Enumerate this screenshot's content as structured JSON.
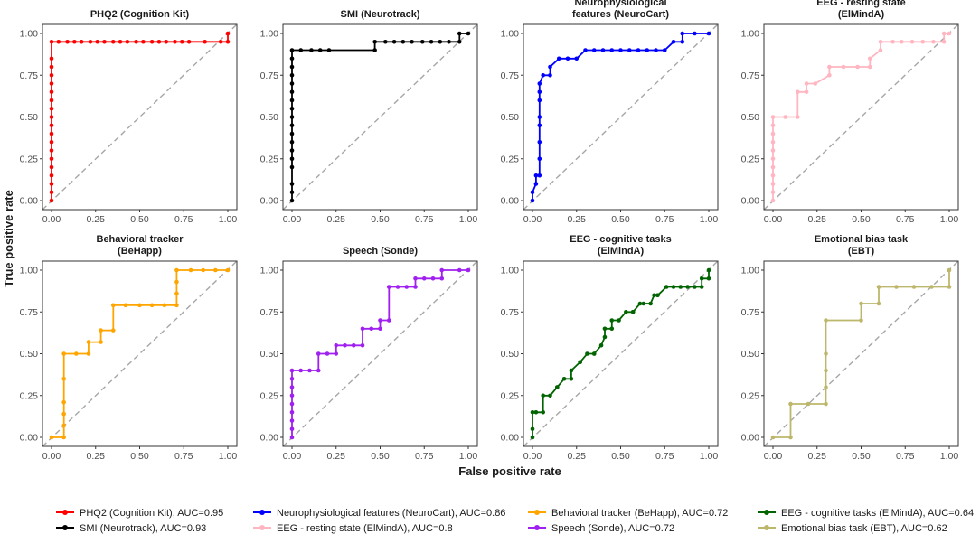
{
  "figure": {
    "xlabel": "False positive rate",
    "ylabel": "True positive rate",
    "axis_ticks": [
      "0.00",
      "0.25",
      "0.50",
      "0.75",
      "1.00"
    ]
  },
  "legend": {
    "items": [
      {
        "label": "PHQ2 (Cognition Kit), AUC=0.95",
        "color": "#ff0000"
      },
      {
        "label": "SMI (Neurotrack), AUC=0.93",
        "color": "#000000"
      },
      {
        "label": "Neurophysiological features (NeuroCart), AUC=0.86",
        "color": "#0000ff"
      },
      {
        "label": "EEG - resting state (ElMindA), AUC=0.8",
        "color": "#ffb6c1"
      },
      {
        "label": "Behavioral tracker (BeHapp), AUC=0.72",
        "color": "#ffa500"
      },
      {
        "label": "Speech (Sonde), AUC=0.72",
        "color": "#a020f0"
      },
      {
        "label": "EEG - cognitive tasks (ElMindA), AUC=0.64",
        "color": "#006400"
      },
      {
        "label": "Emotional bias task (EBT), AUC=0.62",
        "color": "#bdb76b"
      }
    ]
  },
  "chart_data": [
    {
      "type": "line",
      "title": [
        "PHQ2 (Cognition Kit)"
      ],
      "xlabel": "False positive rate",
      "ylabel": "True positive rate",
      "xlim": [
        0,
        1
      ],
      "ylim": [
        0,
        1
      ],
      "color": "#ff0000",
      "x": [
        0,
        0,
        0,
        0,
        0,
        0,
        0,
        0,
        0,
        0,
        0,
        0,
        0,
        0,
        0,
        0,
        0,
        0,
        0,
        0.04,
        0.09,
        0.13,
        0.17,
        0.22,
        0.26,
        0.3,
        0.35,
        0.39,
        0.43,
        0.48,
        0.52,
        0.57,
        0.61,
        0.65,
        0.7,
        0.74,
        0.78,
        0.87,
        0.96,
        1,
        1
      ],
      "y": [
        0,
        0.05,
        0.1,
        0.15,
        0.2,
        0.25,
        0.3,
        0.35,
        0.4,
        0.45,
        0.5,
        0.55,
        0.6,
        0.65,
        0.7,
        0.75,
        0.8,
        0.85,
        0.95,
        0.95,
        0.95,
        0.95,
        0.95,
        0.95,
        0.95,
        0.95,
        0.95,
        0.95,
        0.95,
        0.95,
        0.95,
        0.95,
        0.95,
        0.95,
        0.95,
        0.95,
        0.95,
        0.95,
        0.95,
        0.95,
        1
      ]
    },
    {
      "type": "line",
      "title": [
        "SMI (Neurotrack)"
      ],
      "xlabel": "False positive rate",
      "ylabel": "True positive rate",
      "xlim": [
        0,
        1
      ],
      "ylim": [
        0,
        1
      ],
      "color": "#000000",
      "x": [
        0,
        0,
        0,
        0,
        0,
        0,
        0,
        0,
        0,
        0,
        0,
        0,
        0,
        0,
        0,
        0,
        0,
        0,
        0.05,
        0.11,
        0.16,
        0.21,
        0.47,
        0.47,
        0.53,
        0.58,
        0.63,
        0.68,
        0.74,
        0.79,
        0.84,
        0.89,
        0.95,
        0.95,
        1
      ],
      "y": [
        0,
        0.05,
        0.1,
        0.2,
        0.25,
        0.3,
        0.35,
        0.4,
        0.45,
        0.5,
        0.55,
        0.6,
        0.65,
        0.7,
        0.75,
        0.8,
        0.85,
        0.9,
        0.9,
        0.9,
        0.9,
        0.9,
        0.9,
        0.95,
        0.95,
        0.95,
        0.95,
        0.95,
        0.95,
        0.95,
        0.95,
        0.95,
        0.95,
        1,
        1
      ]
    },
    {
      "type": "line",
      "title": [
        "Neurophysiological",
        "features (NeuroCart)"
      ],
      "xlabel": "False positive rate",
      "ylabel": "True positive rate",
      "xlim": [
        0,
        1
      ],
      "ylim": [
        0,
        1
      ],
      "color": "#0000ff",
      "x": [
        0,
        0,
        0.02,
        0.02,
        0.04,
        0.04,
        0.04,
        0.04,
        0.04,
        0.04,
        0.04,
        0.04,
        0.06,
        0.1,
        0.1,
        0.15,
        0.2,
        0.25,
        0.3,
        0.35,
        0.4,
        0.45,
        0.5,
        0.55,
        0.6,
        0.65,
        0.7,
        0.75,
        0.8,
        0.85,
        0.85,
        0.92,
        1
      ],
      "y": [
        0,
        0.05,
        0.1,
        0.15,
        0.15,
        0.25,
        0.35,
        0.45,
        0.5,
        0.6,
        0.65,
        0.7,
        0.75,
        0.75,
        0.8,
        0.85,
        0.85,
        0.85,
        0.9,
        0.9,
        0.9,
        0.9,
        0.9,
        0.9,
        0.9,
        0.9,
        0.9,
        0.9,
        0.95,
        0.95,
        1,
        1,
        1
      ]
    },
    {
      "type": "line",
      "title": [
        "EEG - resting state",
        "(ElMindA)"
      ],
      "xlabel": "False positive rate",
      "ylabel": "True positive rate",
      "xlim": [
        0,
        1
      ],
      "ylim": [
        0,
        1
      ],
      "color": "#ffb6c1",
      "x": [
        0,
        0,
        0,
        0,
        0,
        0,
        0,
        0,
        0,
        0,
        0,
        0.07,
        0.14,
        0.14,
        0.19,
        0.19,
        0.24,
        0.32,
        0.32,
        0.4,
        0.48,
        0.55,
        0.55,
        0.61,
        0.61,
        0.68,
        0.73,
        0.79,
        0.85,
        0.91,
        0.97,
        0.97,
        1
      ],
      "y": [
        0,
        0.05,
        0.1,
        0.15,
        0.2,
        0.25,
        0.3,
        0.35,
        0.4,
        0.45,
        0.5,
        0.5,
        0.5,
        0.65,
        0.65,
        0.7,
        0.7,
        0.75,
        0.8,
        0.8,
        0.8,
        0.8,
        0.85,
        0.9,
        0.95,
        0.95,
        0.95,
        0.95,
        0.95,
        0.95,
        0.95,
        1,
        1
      ]
    },
    {
      "type": "line",
      "title": [
        "Behavioral tracker",
        "(BeHapp)"
      ],
      "xlabel": "False positive rate",
      "ylabel": "True positive rate",
      "xlim": [
        0,
        1
      ],
      "ylim": [
        0,
        1
      ],
      "color": "#ffa500",
      "x": [
        0,
        0.07,
        0.07,
        0.07,
        0.07,
        0.07,
        0.07,
        0.14,
        0.21,
        0.21,
        0.28,
        0.28,
        0.35,
        0.35,
        0.42,
        0.5,
        0.57,
        0.64,
        0.71,
        0.71,
        0.71,
        0.71,
        0.79,
        0.86,
        0.93,
        1
      ],
      "y": [
        0,
        0,
        0.07,
        0.14,
        0.21,
        0.35,
        0.5,
        0.5,
        0.5,
        0.57,
        0.57,
        0.64,
        0.64,
        0.79,
        0.79,
        0.79,
        0.79,
        0.79,
        0.79,
        0.86,
        0.93,
        1,
        1,
        1,
        1,
        1
      ]
    },
    {
      "type": "line",
      "title": [
        "Speech (Sonde)"
      ],
      "xlabel": "False positive rate",
      "ylabel": "True positive rate",
      "xlim": [
        0,
        1
      ],
      "ylim": [
        0,
        1
      ],
      "color": "#a020f0",
      "x": [
        0,
        0,
        0,
        0,
        0,
        0,
        0,
        0,
        0,
        0.05,
        0.1,
        0.15,
        0.15,
        0.2,
        0.25,
        0.25,
        0.3,
        0.35,
        0.4,
        0.4,
        0.45,
        0.5,
        0.5,
        0.55,
        0.55,
        0.6,
        0.65,
        0.7,
        0.7,
        0.75,
        0.8,
        0.85,
        0.85,
        0.95,
        1
      ],
      "y": [
        0,
        0.05,
        0.1,
        0.15,
        0.2,
        0.25,
        0.3,
        0.35,
        0.4,
        0.4,
        0.4,
        0.4,
        0.5,
        0.5,
        0.5,
        0.55,
        0.55,
        0.55,
        0.55,
        0.65,
        0.65,
        0.65,
        0.7,
        0.7,
        0.9,
        0.9,
        0.9,
        0.9,
        0.95,
        0.95,
        0.95,
        0.95,
        1,
        1,
        1
      ]
    },
    {
      "type": "line",
      "title": [
        "EEG - cognitive tasks",
        "(ElMindA)"
      ],
      "xlabel": "False positive rate",
      "ylabel": "True positive rate",
      "xlim": [
        0,
        1
      ],
      "ylim": [
        0,
        1
      ],
      "color": "#006400",
      "x": [
        0,
        0,
        0,
        0.02,
        0.06,
        0.06,
        0.1,
        0.14,
        0.14,
        0.18,
        0.22,
        0.22,
        0.27,
        0.27,
        0.31,
        0.35,
        0.35,
        0.39,
        0.41,
        0.41,
        0.45,
        0.45,
        0.49,
        0.53,
        0.57,
        0.57,
        0.61,
        0.63,
        0.67,
        0.69,
        0.71,
        0.71,
        0.76,
        0.8,
        0.84,
        0.88,
        0.92,
        0.96,
        0.96,
        1,
        1
      ],
      "y": [
        0,
        0.05,
        0.15,
        0.15,
        0.15,
        0.25,
        0.25,
        0.3,
        0.3,
        0.35,
        0.35,
        0.4,
        0.45,
        0.45,
        0.5,
        0.5,
        0.5,
        0.55,
        0.6,
        0.65,
        0.65,
        0.7,
        0.7,
        0.75,
        0.75,
        0.75,
        0.8,
        0.8,
        0.8,
        0.85,
        0.85,
        0.85,
        0.9,
        0.9,
        0.9,
        0.9,
        0.9,
        0.9,
        0.95,
        0.95,
        1
      ]
    },
    {
      "type": "line",
      "title": [
        "Emotional bias task",
        "(EBT)"
      ],
      "xlabel": "False positive rate",
      "ylabel": "True positive rate",
      "xlim": [
        0,
        1
      ],
      "ylim": [
        0,
        1
      ],
      "color": "#bdb76b",
      "x": [
        0,
        0.1,
        0.1,
        0.2,
        0.3,
        0.3,
        0.3,
        0.3,
        0.3,
        0.5,
        0.5,
        0.6,
        0.6,
        0.7,
        0.8,
        0.9,
        1,
        1
      ],
      "y": [
        0,
        0,
        0.2,
        0.2,
        0.2,
        0.3,
        0.4,
        0.5,
        0.7,
        0.7,
        0.8,
        0.8,
        0.9,
        0.9,
        0.9,
        0.9,
        0.9,
        1
      ]
    }
  ]
}
